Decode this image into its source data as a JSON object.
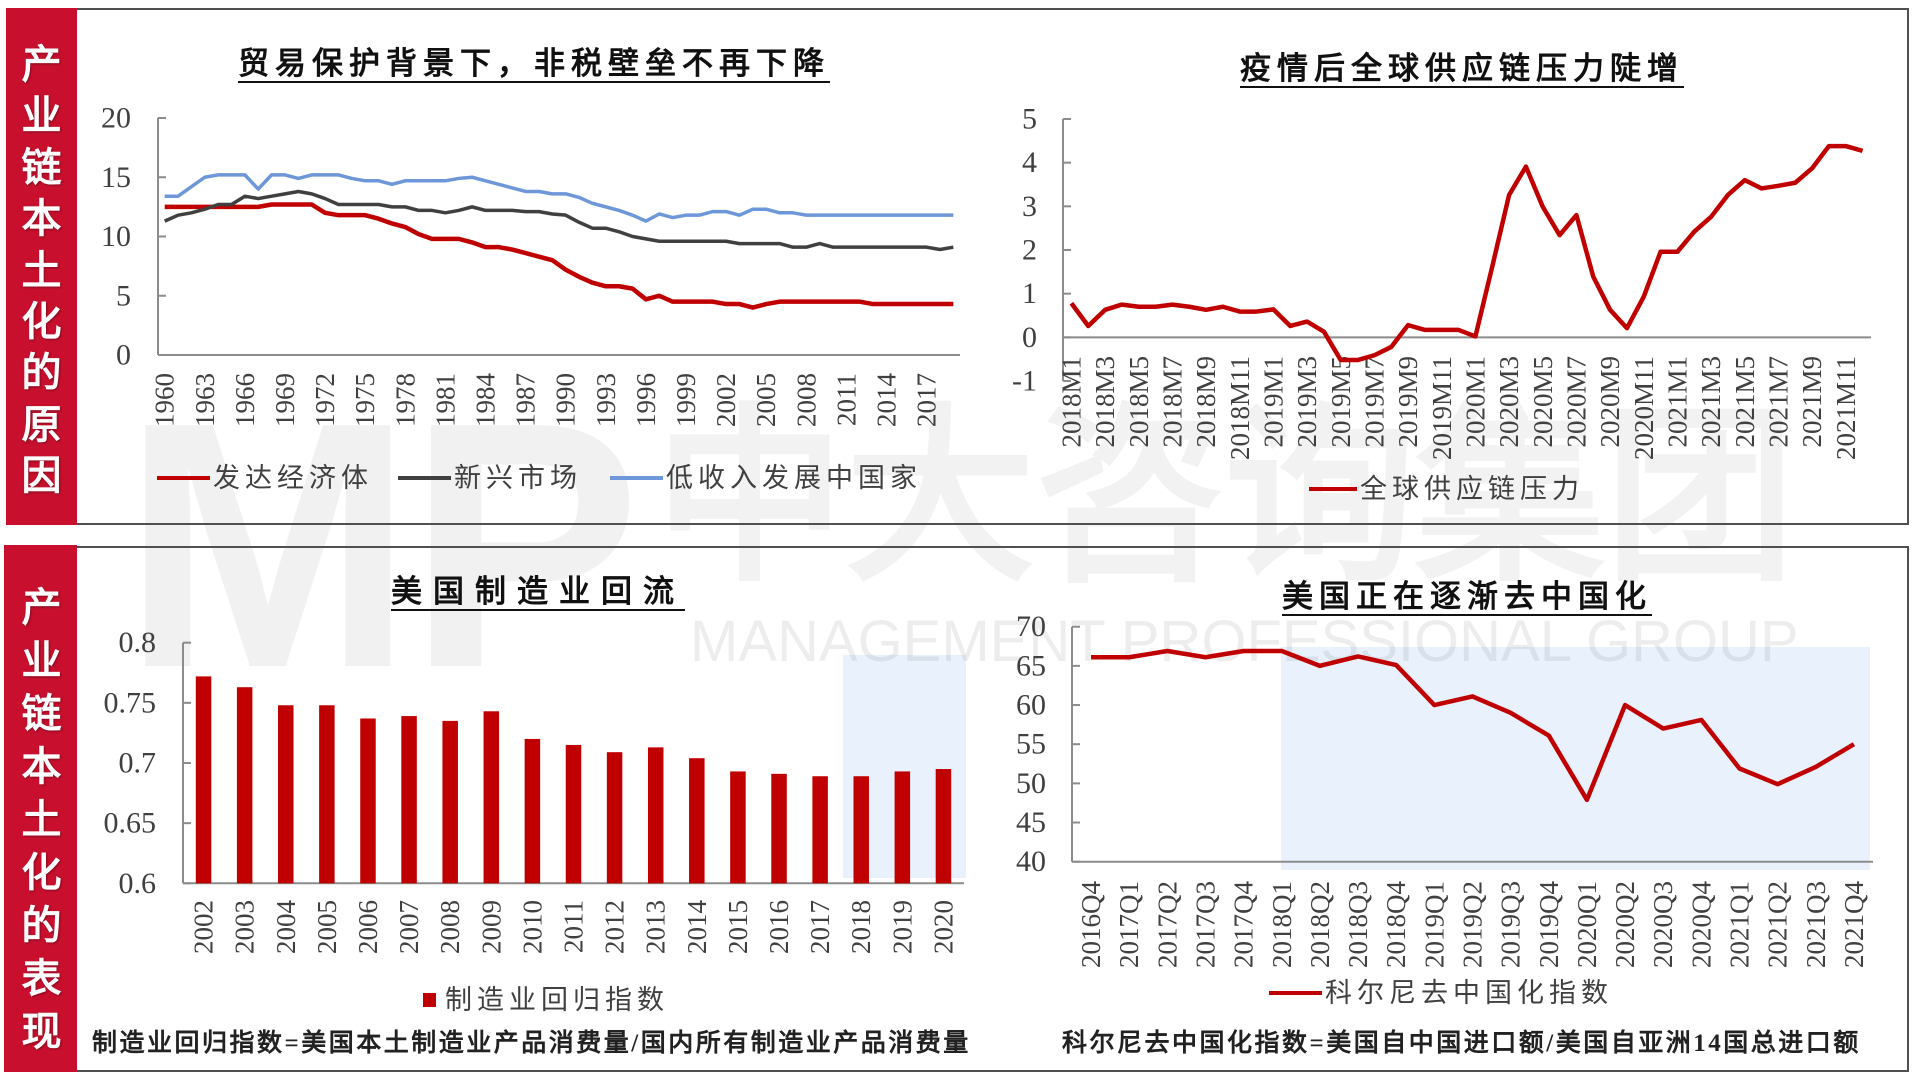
{
  "sections": [
    {
      "label": "产业链本土化的原因"
    },
    {
      "label": "产业链本土化的表现"
    }
  ],
  "watermark": {
    "logo": "MP",
    "company_cn": "中大咨询集团",
    "company_en": "MANAGEMENT PROFESSIONAL GROUP"
  },
  "footnotes": {
    "manufacturing": "制造业回归指数=美国本土制造业产品消费量/国内所有制造业产品消费量",
    "kearney": "科尔尼去中国化指数=美国自中国进口额/美国自亚洲14国总进口额"
  },
  "chart_data": [
    {
      "type": "line",
      "title": "贸易保护背景下，非税壁垒不再下降",
      "xlabel": "",
      "ylabel": "",
      "ylim": [
        0,
        20
      ],
      "yticks": [
        0,
        5,
        10,
        15,
        20
      ],
      "ytick_labels": [
        "0",
        "5",
        "10",
        "15",
        "20"
      ],
      "xtick_step": 3,
      "grid": false,
      "legend_position": "bottom",
      "categories": [
        "1960",
        "1961",
        "1962",
        "1963",
        "1964",
        "1965",
        "1966",
        "1967",
        "1968",
        "1969",
        "1970",
        "1971",
        "1972",
        "1973",
        "1974",
        "1975",
        "1976",
        "1977",
        "1978",
        "1979",
        "1980",
        "1981",
        "1982",
        "1983",
        "1984",
        "1985",
        "1986",
        "1987",
        "1988",
        "1989",
        "1990",
        "1991",
        "1992",
        "1993",
        "1994",
        "1995",
        "1996",
        "1997",
        "1998",
        "1999",
        "2000",
        "2001",
        "2002",
        "2003",
        "2004",
        "2005",
        "2006",
        "2007",
        "2008",
        "2009",
        "2010",
        "2011",
        "2012",
        "2013",
        "2014",
        "2015",
        "2016",
        "2017",
        "2018",
        "2019"
      ],
      "series": [
        {
          "name": "发达经济体",
          "color": "#c00000",
          "values": [
            12.5,
            12.5,
            12.5,
            12.5,
            12.5,
            12.5,
            12.5,
            12.5,
            12.7,
            12.7,
            12.7,
            12.7,
            12.0,
            11.8,
            11.8,
            11.8,
            11.5,
            11.1,
            10.8,
            10.2,
            9.8,
            9.8,
            9.8,
            9.5,
            9.1,
            9.1,
            8.9,
            8.6,
            8.3,
            8.0,
            7.2,
            6.6,
            6.1,
            5.8,
            5.8,
            5.6,
            4.7,
            5.0,
            4.5,
            4.5,
            4.5,
            4.5,
            4.3,
            4.3,
            4.0,
            4.3,
            4.5,
            4.5,
            4.5,
            4.5,
            4.5,
            4.5,
            4.5,
            4.3,
            4.3,
            4.3,
            4.3,
            4.3,
            4.3,
            4.3
          ]
        },
        {
          "name": "新兴市场",
          "color": "#404040",
          "values": [
            11.3,
            11.8,
            12.0,
            12.3,
            12.7,
            12.7,
            13.4,
            13.2,
            13.4,
            13.6,
            13.8,
            13.6,
            13.2,
            12.7,
            12.7,
            12.7,
            12.7,
            12.5,
            12.5,
            12.2,
            12.2,
            12.0,
            12.2,
            12.5,
            12.2,
            12.2,
            12.2,
            12.1,
            12.1,
            11.9,
            11.8,
            11.2,
            10.7,
            10.7,
            10.4,
            10.0,
            9.8,
            9.6,
            9.6,
            9.6,
            9.6,
            9.6,
            9.6,
            9.4,
            9.4,
            9.4,
            9.4,
            9.1,
            9.1,
            9.4,
            9.1,
            9.1,
            9.1,
            9.1,
            9.1,
            9.1,
            9.1,
            9.1,
            8.9,
            9.1
          ]
        },
        {
          "name": "低收入发展中国家",
          "color": "#6d97d9",
          "values": [
            13.4,
            13.4,
            14.2,
            15.0,
            15.2,
            15.2,
            15.2,
            14.0,
            15.2,
            15.2,
            14.9,
            15.2,
            15.2,
            15.2,
            14.9,
            14.7,
            14.7,
            14.4,
            14.7,
            14.7,
            14.7,
            14.7,
            14.9,
            15.0,
            14.7,
            14.4,
            14.1,
            13.8,
            13.8,
            13.6,
            13.6,
            13.3,
            12.8,
            12.5,
            12.2,
            11.8,
            11.3,
            11.9,
            11.6,
            11.8,
            11.8,
            12.1,
            12.1,
            11.8,
            12.3,
            12.3,
            12.0,
            12.0,
            11.8,
            11.8,
            11.8,
            11.8,
            11.8,
            11.8,
            11.8,
            11.8,
            11.8,
            11.8,
            11.8,
            11.8
          ]
        }
      ]
    },
    {
      "type": "line",
      "title": "疫情后全球供应链压力陡增",
      "xlabel": "",
      "ylabel": "",
      "ylim": [
        -1,
        5
      ],
      "x_axis_at": 0,
      "yticks": [
        -1,
        0,
        1,
        2,
        3,
        4,
        5
      ],
      "ytick_labels": [
        "-1",
        "0",
        "1",
        "2",
        "3",
        "4",
        "5"
      ],
      "xtick_step": 2,
      "grid": false,
      "legend_position": "bottom",
      "categories": [
        "2018M1",
        "2018M2",
        "2018M3",
        "2018M4",
        "2018M5",
        "2018M6",
        "2018M7",
        "2018M8",
        "2018M9",
        "2018M10",
        "2018M11",
        "2018M12",
        "2019M1",
        "2019M2",
        "2019M3",
        "2019M4",
        "2019M5",
        "2019M6",
        "2019M7",
        "2019M8",
        "2019M9",
        "2019M10",
        "2019M11",
        "2019M12",
        "2020M1",
        "2020M2",
        "2020M3",
        "2020M4",
        "2020M5",
        "2020M6",
        "2020M7",
        "2020M8",
        "2020M9",
        "2020M10",
        "2020M11",
        "2020M12",
        "2021M1",
        "2021M2",
        "2021M3",
        "2021M4",
        "2021M5",
        "2021M6",
        "2021M7",
        "2021M8",
        "2021M9",
        "2021M10",
        "2021M11",
        "2021M12"
      ],
      "series": [
        {
          "name": "全球供应链压力",
          "color": "#c00000",
          "values": [
            0.78,
            0.26,
            0.63,
            0.75,
            0.7,
            0.7,
            0.75,
            0.7,
            0.63,
            0.7,
            0.59,
            0.59,
            0.64,
            0.26,
            0.36,
            0.13,
            -0.52,
            -0.52,
            -0.41,
            -0.22,
            0.28,
            0.17,
            0.17,
            0.17,
            0.02,
            1.62,
            3.26,
            3.91,
            2.99,
            2.34,
            2.8,
            1.39,
            0.63,
            0.21,
            0.93,
            1.96,
            1.96,
            2.42,
            2.76,
            3.26,
            3.6,
            3.41,
            3.47,
            3.54,
            3.87,
            4.38,
            4.38,
            4.27
          ]
        }
      ]
    },
    {
      "type": "bar",
      "title": "美国制造业回流",
      "xlabel": "",
      "ylabel": "",
      "ylim": [
        0.6,
        0.8
      ],
      "yticks": [
        0.6,
        0.65,
        0.7,
        0.75,
        0.8
      ],
      "ytick_labels": [
        "0.6",
        "0.65",
        "0.7",
        "0.75",
        "0.8"
      ],
      "xtick_step": 1,
      "grid": false,
      "legend_position": "bottom",
      "categories": [
        "2002",
        "2003",
        "2004",
        "2005",
        "2006",
        "2007",
        "2008",
        "2009",
        "2010",
        "2011",
        "2012",
        "2013",
        "2014",
        "2015",
        "2016",
        "2017",
        "2018",
        "2019",
        "2020"
      ],
      "series": [
        {
          "name": "制造业回归指数",
          "color": "#c00000",
          "values": [
            0.772,
            0.763,
            0.748,
            0.748,
            0.737,
            0.739,
            0.735,
            0.743,
            0.72,
            0.715,
            0.709,
            0.713,
            0.704,
            0.693,
            0.691,
            0.689,
            0.689,
            0.693,
            0.695
          ]
        }
      ]
    },
    {
      "type": "line",
      "title": "美国正在逐渐去中国化",
      "xlabel": "",
      "ylabel": "",
      "ylim": [
        40,
        70
      ],
      "yticks": [
        40,
        45,
        50,
        55,
        60,
        65,
        70
      ],
      "ytick_labels": [
        "40",
        "45",
        "50",
        "55",
        "60",
        "65",
        "70"
      ],
      "xtick_step": 1,
      "grid": false,
      "legend_position": "bottom",
      "categories": [
        "2016Q4",
        "2017Q1",
        "2017Q2",
        "2017Q3",
        "2017Q4",
        "2018Q1",
        "2018Q2",
        "2018Q3",
        "2018Q4",
        "2019Q1",
        "2019Q2",
        "2019Q3",
        "2019Q4",
        "2020Q1",
        "2020Q2",
        "2020Q3",
        "2020Q4",
        "2021Q1",
        "2021Q2",
        "2021Q3",
        "2021Q4"
      ],
      "series": [
        {
          "name": "科尔尼去中国化指数",
          "color": "#c00000",
          "values": [
            66.1,
            66.1,
            66.9,
            66.1,
            66.9,
            66.9,
            65.0,
            66.2,
            65.1,
            60.0,
            61.1,
            59.0,
            56.1,
            47.9,
            60.0,
            57.0,
            58.1,
            51.9,
            49.9,
            52.1,
            55.0
          ]
        }
      ]
    }
  ]
}
